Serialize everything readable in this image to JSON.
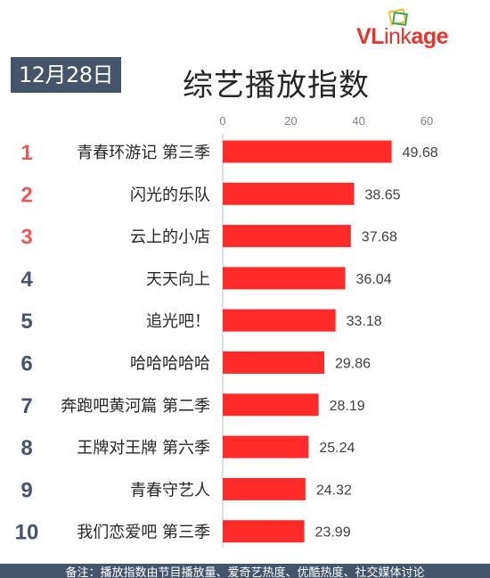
{
  "header": {
    "date": "12月28日",
    "title": "综艺播放指数",
    "logo_text_v": "VL",
    "logo_text_rest": "ink",
    "logo_text_end": "age"
  },
  "colors": {
    "bar": "#ff2b2b",
    "badge": "#44546a",
    "rank_top": "#e8595a",
    "rank_other": "#44546a",
    "logo": "#e8322c"
  },
  "chart_data": {
    "type": "bar",
    "orientation": "horizontal",
    "x_ticks": [
      0,
      20,
      40,
      60
    ],
    "xlim": [
      0,
      60
    ],
    "ranks": [
      "1",
      "2",
      "3",
      "4",
      "5",
      "6",
      "7",
      "8",
      "9",
      "10"
    ],
    "categories": [
      "青春环游记 第三季",
      "闪光的乐队",
      "云上的小店",
      "天天向上",
      "追光吧！",
      "哈哈哈哈哈",
      "奔跑吧黄河篇 第二季",
      "王牌对王牌 第六季",
      "青春守艺人",
      "我们恋爱吧 第三季"
    ],
    "values": [
      49.68,
      38.65,
      37.68,
      36.04,
      33.18,
      29.86,
      28.19,
      25.24,
      24.32,
      23.99
    ],
    "value_labels": [
      "49.68",
      "38.65",
      "37.68",
      "36.04",
      "33.18",
      "29.86",
      "28.19",
      "25.24",
      "24.32",
      "23.99"
    ],
    "grid": false,
    "legend": "none"
  },
  "footer": {
    "note": "备注：播放指数由节目播放量、爱奇艺热度、优酷热度、社交媒体讨论"
  }
}
